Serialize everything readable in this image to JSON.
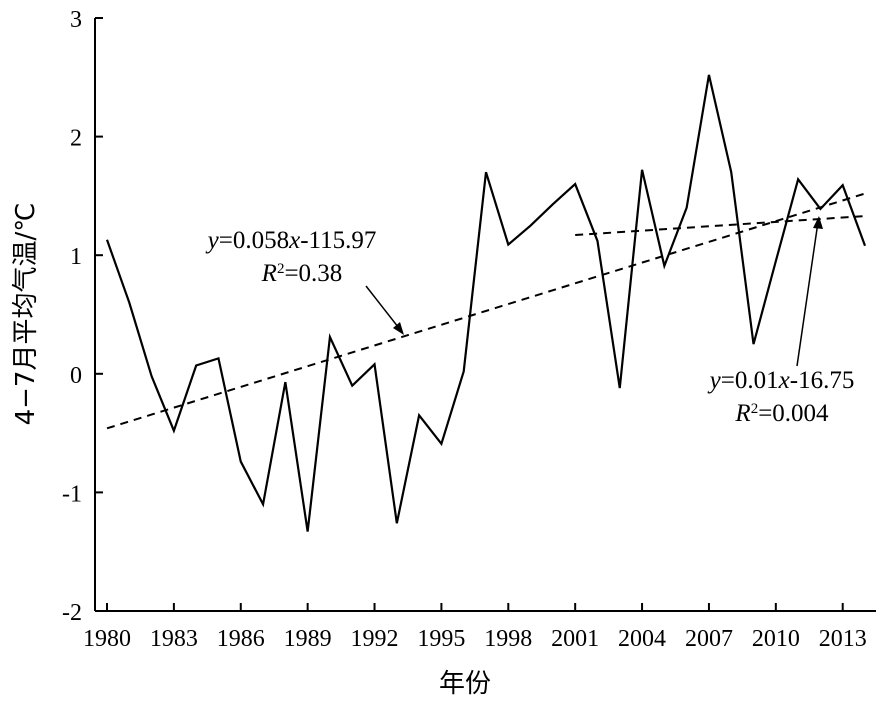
{
  "chart_data": {
    "type": "line",
    "xlabel": "年份",
    "ylabel": "4−7月平均气温/℃",
    "xlim": [
      1980,
      2014
    ],
    "ylim": [
      -2,
      3
    ],
    "x_ticks": [
      1980,
      1983,
      1986,
      1989,
      1992,
      1995,
      1998,
      2001,
      2004,
      2007,
      2010,
      2013
    ],
    "y_ticks": [
      3,
      2,
      1,
      0,
      -1,
      -2
    ],
    "series": [
      {
        "x": [
          1980,
          1981,
          1982,
          1983,
          1984,
          1985,
          1986,
          1987,
          1988,
          1989,
          1990,
          1991,
          1992,
          1993,
          1994,
          1995,
          1996,
          1997,
          1998,
          1999,
          2000,
          2001,
          2002,
          2003,
          2004,
          2005,
          2006,
          2007,
          2008,
          2009,
          2010,
          2011,
          2012,
          2013,
          2014
        ],
        "values": [
          1.13,
          0.6,
          -0.02,
          -0.48,
          0.07,
          0.13,
          -0.74,
          -1.1,
          -0.07,
          -1.33,
          0.31,
          -0.1,
          0.08,
          -1.26,
          -0.35,
          -0.59,
          0.02,
          1.7,
          1.09,
          1.25,
          1.43,
          1.6,
          1.12,
          -0.12,
          1.72,
          0.91,
          1.4,
          2.52,
          1.7,
          0.25,
          0.95,
          1.64,
          1.39,
          1.59,
          1.08
        ],
        "style": "solid"
      }
    ],
    "trendlines": [
      {
        "x": [
          1980,
          2014
        ],
        "values": [
          -0.46,
          1.52
        ],
        "style": "dashed"
      },
      {
        "x": [
          2001,
          2014
        ],
        "values": [
          1.17,
          1.33
        ],
        "style": "dashed"
      }
    ],
    "annotations": [
      {
        "id": "trend1",
        "line1_pre": "y",
        "line1_a": "=0.058",
        "line1_b": "x",
        "line1_c": "-115.97",
        "line2_pre": "R",
        "line2_sup": "2",
        "line2_post": "=0.38"
      },
      {
        "id": "trend2",
        "line1_pre": "y",
        "line1_a": "=0.01",
        "line1_b": "x",
        "line1_c": "-16.75",
        "line2_pre": "R",
        "line2_sup": "2",
        "line2_post": "=0.004"
      }
    ],
    "grid": false
  }
}
